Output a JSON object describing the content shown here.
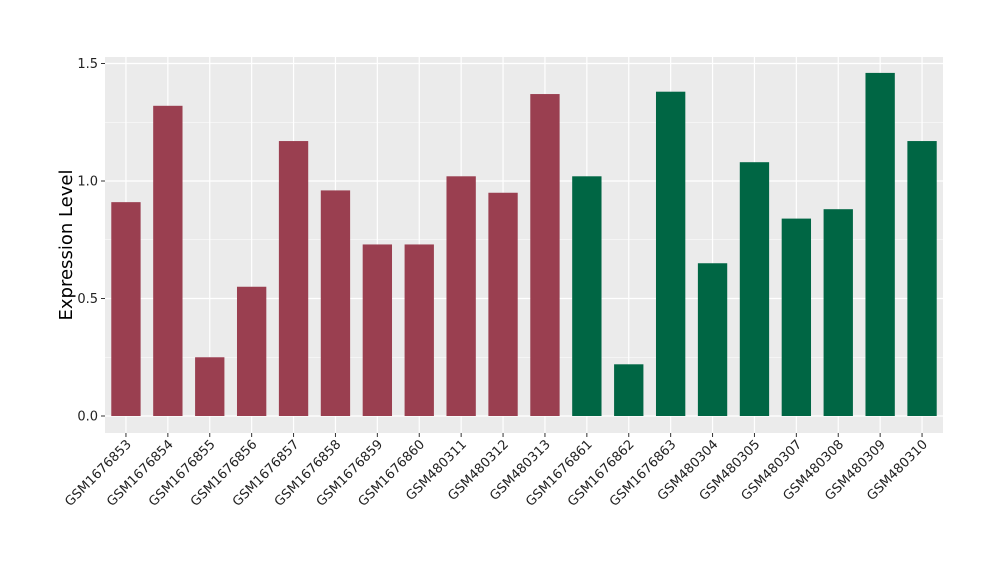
{
  "chart_data": {
    "type": "bar",
    "title": "",
    "xlabel": "",
    "ylabel": "Expression Level",
    "ylim": [
      -0.05,
      1.5
    ],
    "yticks": [
      0.0,
      0.5,
      1.0,
      1.5
    ],
    "ytick_labels": [
      "0.0",
      "0.5",
      "1.0",
      "1.5"
    ],
    "grid": true,
    "legend": "none",
    "categories": [
      "GSM1676853",
      "GSM1676854",
      "GSM1676855",
      "GSM1676856",
      "GSM1676857",
      "GSM1676858",
      "GSM1676859",
      "GSM1676860",
      "GSM480311",
      "GSM480312",
      "GSM480313",
      "GSM1676861",
      "GSM1676862",
      "GSM1676863",
      "GSM480304",
      "GSM480305",
      "GSM480307",
      "GSM480308",
      "GSM480309",
      "GSM480310"
    ],
    "values": [
      0.91,
      1.32,
      0.25,
      0.55,
      1.17,
      0.96,
      0.73,
      0.73,
      1.02,
      0.95,
      1.37,
      1.02,
      0.22,
      1.38,
      0.65,
      1.08,
      0.84,
      0.88,
      1.46,
      1.17
    ],
    "group": [
      0,
      0,
      0,
      0,
      0,
      0,
      0,
      0,
      0,
      0,
      0,
      1,
      1,
      1,
      1,
      1,
      1,
      1,
      1,
      1
    ],
    "colors": [
      "#9a3f50",
      "#006644"
    ],
    "panel_background": "#ebebeb",
    "grid_color": "#ffffff"
  }
}
